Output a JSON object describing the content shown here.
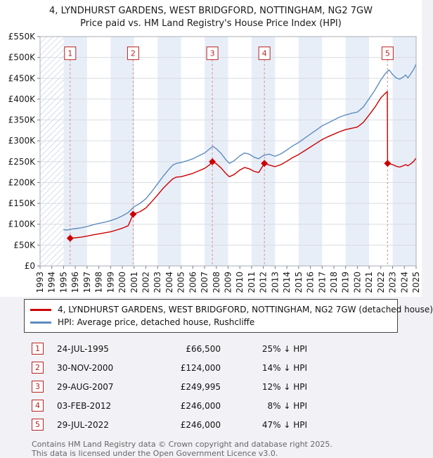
{
  "title": "4, LYNDHURST GARDENS, WEST BRIDGFORD, NOTTINGHAM, NG2 7GW",
  "subtitle": "Price paid vs. HM Land Registry's House Price Index (HPI)",
  "chart_data": {
    "type": "line",
    "x_range": [
      1993,
      2025
    ],
    "y_range": [
      0,
      550000
    ],
    "hatch_until": 1995.0,
    "marker_label_y": 510000,
    "grid": true,
    "colors": {
      "property": "#cc0000",
      "hpi": "#5f8cbf",
      "stripe": "#e8eef8",
      "dashed_line": "#e08585",
      "marker_red": "#bb2222",
      "gridline": "#d8dce2",
      "plot_border": "#a8aeb8"
    },
    "y_ticks": [
      {
        "v": 0,
        "label": "£0"
      },
      {
        "v": 50000,
        "label": "£50K"
      },
      {
        "v": 100000,
        "label": "£100K"
      },
      {
        "v": 150000,
        "label": "£150K"
      },
      {
        "v": 200000,
        "label": "£200K"
      },
      {
        "v": 250000,
        "label": "£250K"
      },
      {
        "v": 300000,
        "label": "£300K"
      },
      {
        "v": 350000,
        "label": "£350K"
      },
      {
        "v": 400000,
        "label": "£400K"
      },
      {
        "v": 450000,
        "label": "£450K"
      },
      {
        "v": 500000,
        "label": "£500K"
      },
      {
        "v": 550000,
        "label": "£550K"
      }
    ],
    "x_ticks": [
      1993,
      1994,
      1995,
      1996,
      1997,
      1998,
      1999,
      2000,
      2001,
      2002,
      2003,
      2004,
      2005,
      2006,
      2007,
      2008,
      2009,
      2010,
      2011,
      2012,
      2013,
      2014,
      2015,
      2016,
      2017,
      2018,
      2019,
      2020,
      2021,
      2022,
      2023,
      2024,
      2025
    ],
    "series": [
      {
        "name": "4, LYNDHURST GARDENS, WEST BRIDGFORD, NOTTINGHAM, NG2 7GW (detached house)",
        "color": "#cc0000",
        "points": [
          [
            1995.56,
            66500
          ],
          [
            1996.0,
            67500
          ],
          [
            1996.5,
            69000
          ],
          [
            1997.0,
            71500
          ],
          [
            1997.5,
            74500
          ],
          [
            1998.0,
            77000
          ],
          [
            1998.5,
            79500
          ],
          [
            1999.0,
            82000
          ],
          [
            1999.5,
            86000
          ],
          [
            2000.0,
            90500
          ],
          [
            2000.5,
            96500
          ],
          [
            2000.92,
            124000
          ],
          [
            2001.5,
            130000
          ],
          [
            2002.0,
            139000
          ],
          [
            2002.5,
            154000
          ],
          [
            2003.0,
            170000
          ],
          [
            2003.5,
            187000
          ],
          [
            2004.0,
            201000
          ],
          [
            2004.3,
            209000
          ],
          [
            2004.6,
            213000
          ],
          [
            2005.0,
            214000
          ],
          [
            2005.5,
            218000
          ],
          [
            2006.0,
            222000
          ],
          [
            2006.5,
            228000
          ],
          [
            2007.0,
            234000
          ],
          [
            2007.4,
            242000
          ],
          [
            2007.66,
            249995
          ],
          [
            2008.0,
            245000
          ],
          [
            2008.4,
            235000
          ],
          [
            2008.8,
            222000
          ],
          [
            2009.1,
            214000
          ],
          [
            2009.5,
            219000
          ],
          [
            2010.0,
            230000
          ],
          [
            2010.4,
            236000
          ],
          [
            2010.8,
            233000
          ],
          [
            2011.2,
            227000
          ],
          [
            2011.6,
            224000
          ],
          [
            2012.09,
            246000
          ],
          [
            2012.5,
            242000
          ],
          [
            2013.0,
            238000
          ],
          [
            2013.5,
            243000
          ],
          [
            2014.0,
            251000
          ],
          [
            2014.5,
            260000
          ],
          [
            2015.0,
            267000
          ],
          [
            2015.5,
            276000
          ],
          [
            2016.0,
            285000
          ],
          [
            2016.5,
            294000
          ],
          [
            2017.0,
            303000
          ],
          [
            2017.5,
            310000
          ],
          [
            2018.0,
            316000
          ],
          [
            2018.5,
            322000
          ],
          [
            2019.0,
            327000
          ],
          [
            2019.5,
            330000
          ],
          [
            2020.0,
            333000
          ],
          [
            2020.5,
            344000
          ],
          [
            2021.0,
            362000
          ],
          [
            2021.5,
            381000
          ],
          [
            2022.0,
            403000
          ],
          [
            2022.3,
            412000
          ],
          [
            2022.55,
            418000
          ],
          [
            2022.57,
            246000
          ],
          [
            2023.0,
            243000
          ],
          [
            2023.3,
            239000
          ],
          [
            2023.6,
            237000
          ],
          [
            2023.9,
            240000
          ],
          [
            2024.1,
            243000
          ],
          [
            2024.3,
            240000
          ],
          [
            2024.6,
            246000
          ],
          [
            2024.8,
            251000
          ],
          [
            2025.0,
            259000
          ]
        ]
      },
      {
        "name": "HPI: Average price, detached house, Rushcliffe",
        "color": "#5f8cbf",
        "points": [
          [
            1995.0,
            87000
          ],
          [
            1995.3,
            86000
          ],
          [
            1995.6,
            88000
          ],
          [
            1996.0,
            89500
          ],
          [
            1996.5,
            91500
          ],
          [
            1997.0,
            94500
          ],
          [
            1997.5,
            98500
          ],
          [
            1998.0,
            102000
          ],
          [
            1998.5,
            105000
          ],
          [
            1999.0,
            108500
          ],
          [
            1999.5,
            113500
          ],
          [
            2000.0,
            120000
          ],
          [
            2000.5,
            128000
          ],
          [
            2001.0,
            142000
          ],
          [
            2001.5,
            150000
          ],
          [
            2002.0,
            161000
          ],
          [
            2002.5,
            178000
          ],
          [
            2003.0,
            197000
          ],
          [
            2003.5,
            216000
          ],
          [
            2004.0,
            233000
          ],
          [
            2004.3,
            242000
          ],
          [
            2004.6,
            246000
          ],
          [
            2005.0,
            248000
          ],
          [
            2005.5,
            252000
          ],
          [
            2006.0,
            257000
          ],
          [
            2006.5,
            264000
          ],
          [
            2007.0,
            271000
          ],
          [
            2007.4,
            280000
          ],
          [
            2007.7,
            287000
          ],
          [
            2008.0,
            281000
          ],
          [
            2008.4,
            270000
          ],
          [
            2008.8,
            255000
          ],
          [
            2009.1,
            246000
          ],
          [
            2009.5,
            252000
          ],
          [
            2010.0,
            264000
          ],
          [
            2010.4,
            271000
          ],
          [
            2010.8,
            268000
          ],
          [
            2011.2,
            261000
          ],
          [
            2011.6,
            257000
          ],
          [
            2012.0,
            265000
          ],
          [
            2012.5,
            268000
          ],
          [
            2013.0,
            263000
          ],
          [
            2013.5,
            269000
          ],
          [
            2014.0,
            278000
          ],
          [
            2014.5,
            288000
          ],
          [
            2015.0,
            296000
          ],
          [
            2015.5,
            306000
          ],
          [
            2016.0,
            316000
          ],
          [
            2016.5,
            326000
          ],
          [
            2017.0,
            336000
          ],
          [
            2017.5,
            343000
          ],
          [
            2018.0,
            350000
          ],
          [
            2018.5,
            357000
          ],
          [
            2019.0,
            362000
          ],
          [
            2019.5,
            366000
          ],
          [
            2020.0,
            369000
          ],
          [
            2020.5,
            381000
          ],
          [
            2021.0,
            401000
          ],
          [
            2021.5,
            422000
          ],
          [
            2022.0,
            446000
          ],
          [
            2022.4,
            462000
          ],
          [
            2022.7,
            470000
          ],
          [
            2023.0,
            459000
          ],
          [
            2023.3,
            451000
          ],
          [
            2023.6,
            448000
          ],
          [
            2023.9,
            453000
          ],
          [
            2024.1,
            458000
          ],
          [
            2024.3,
            451000
          ],
          [
            2024.6,
            463000
          ],
          [
            2024.8,
            472000
          ],
          [
            2025.0,
            484000
          ]
        ]
      }
    ],
    "markers": [
      {
        "num": "1",
        "x": 1995.56,
        "y": 66500
      },
      {
        "num": "2",
        "x": 2000.92,
        "y": 124000
      },
      {
        "num": "3",
        "x": 2007.66,
        "y": 249995
      },
      {
        "num": "4",
        "x": 2012.09,
        "y": 246000
      },
      {
        "num": "5",
        "x": 2022.57,
        "y": 246000
      }
    ]
  },
  "legend": [
    {
      "label": "4, LYNDHURST GARDENS, WEST BRIDGFORD, NOTTINGHAM, NG2 7GW (detached house)"
    },
    {
      "label": "HPI: Average price, detached house, Rushcliffe"
    }
  ],
  "transactions": [
    {
      "num": "1",
      "date": "24-JUL-1995",
      "price": "£66,500",
      "vs_hpi": "25% ↓ HPI"
    },
    {
      "num": "2",
      "date": "30-NOV-2000",
      "price": "£124,000",
      "vs_hpi": "14% ↓ HPI"
    },
    {
      "num": "3",
      "date": "29-AUG-2007",
      "price": "£249,995",
      "vs_hpi": "12% ↓ HPI"
    },
    {
      "num": "4",
      "date": "03-FEB-2012",
      "price": "£246,000",
      "vs_hpi": "8% ↓ HPI"
    },
    {
      "num": "5",
      "date": "29-JUL-2022",
      "price": "£246,000",
      "vs_hpi": "47% ↓ HPI"
    }
  ],
  "footer": {
    "line1": "Contains HM Land Registry data © Crown copyright and database right 2025.",
    "line2": "This data is licensed under the Open Government Licence v3.0."
  }
}
